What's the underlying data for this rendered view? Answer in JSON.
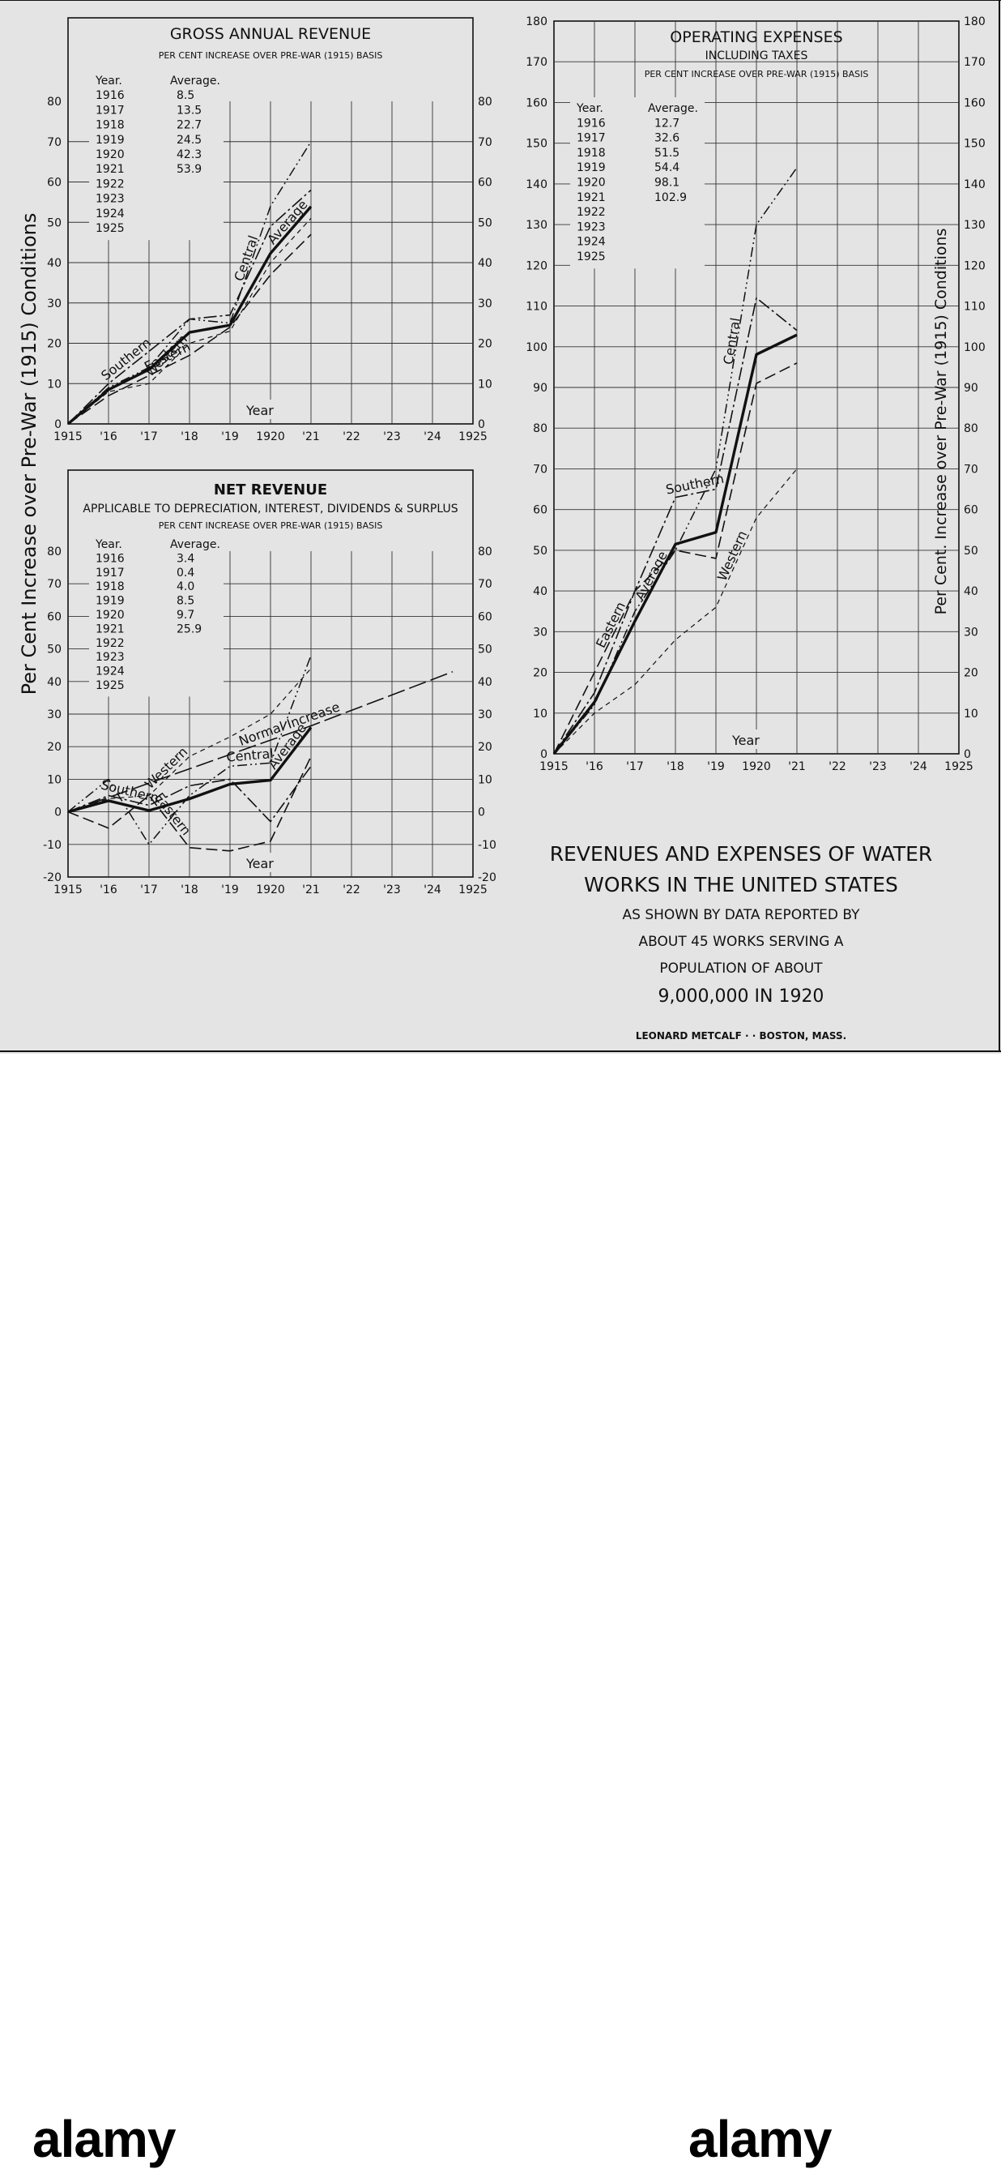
{
  "figure": {
    "left_axis_label": "Per Cent Increase over Pre-War (1915) Conditions",
    "right_axis_label": "Per Cent. Increase over Pre-War (1915) Conditions",
    "caption_lines": [
      "REVENUES AND EXPENSES OF WATER",
      "WORKS IN THE UNITED STATES",
      "AS SHOWN BY DATA REPORTED BY",
      "ABOUT 45 WORKS SERVING A",
      "POPULATION OF ABOUT",
      "9,000,000 IN 1920"
    ],
    "credit": "LEONARD METCALF · · BOSTON, MASS."
  },
  "watermark": {
    "left": "alamy",
    "right": "alamy"
  },
  "chart_data": [
    {
      "type": "line",
      "title": "GROSS ANNUAL REVENUE",
      "subtitle": "PER CENT INCREASE OVER PRE-WAR (1915) BASIS",
      "xlabel": "Year",
      "x": [
        1915,
        1916,
        1917,
        1918,
        1919,
        1920,
        1921
      ],
      "x_ticks": [
        "1915",
        "'16",
        "'17",
        "'18",
        "'19",
        "1920",
        "'21",
        "'22",
        "'23",
        "'24",
        "1925"
      ],
      "xlim": [
        1915,
        1925
      ],
      "ylim": [
        0,
        80
      ],
      "y_ticks": [
        0,
        10,
        20,
        30,
        40,
        50,
        60,
        70,
        80
      ],
      "grid": true,
      "table": {
        "headers": [
          "Year.",
          "Average."
        ],
        "rows": [
          [
            "1916",
            "8.5"
          ],
          [
            "1917",
            "13.5"
          ],
          [
            "1918",
            "22.7"
          ],
          [
            "1919",
            "24.5"
          ],
          [
            "1920",
            "42.3"
          ],
          [
            "1921",
            "53.9"
          ],
          [
            "1922",
            ""
          ],
          [
            "1923",
            ""
          ],
          [
            "1924",
            ""
          ],
          [
            "1925",
            ""
          ]
        ]
      },
      "series": [
        {
          "name": "Average",
          "values": [
            0,
            8.5,
            13.5,
            22.7,
            24.5,
            42.3,
            53.9
          ],
          "color": "#111111"
        },
        {
          "name": "Central",
          "values": [
            0,
            9,
            14,
            26,
            25,
            54,
            70
          ],
          "color": "#111111"
        },
        {
          "name": "Eastern",
          "values": [
            0,
            7,
            12,
            17,
            24,
            37,
            47
          ],
          "color": "#111111"
        },
        {
          "name": "Southern",
          "values": [
            0,
            10,
            18,
            26,
            27,
            49,
            58
          ],
          "color": "#111111"
        },
        {
          "name": "Western",
          "values": [
            0,
            8,
            10,
            20,
            23,
            40,
            51
          ],
          "color": "#111111"
        }
      ]
    },
    {
      "type": "line",
      "title": "NET REVENUE",
      "subtitle": "APPLICABLE TO DEPRECIATION, INTEREST, DIVIDENDS & SURPLUS",
      "subtitle2": "PER CENT INCREASE OVER PRE-WAR (1915) BASIS",
      "xlabel": "Year",
      "x": [
        1915,
        1916,
        1917,
        1918,
        1919,
        1920,
        1921
      ],
      "x_ticks": [
        "1915",
        "'16",
        "'17",
        "'18",
        "'19",
        "1920",
        "'21",
        "'22",
        "'23",
        "'24",
        "1925"
      ],
      "xlim": [
        1915,
        1925
      ],
      "ylim": [
        -20,
        80
      ],
      "y_ticks": [
        -20,
        -10,
        0,
        10,
        20,
        30,
        40,
        50,
        60,
        70,
        80
      ],
      "grid": true,
      "table": {
        "headers": [
          "Year.",
          "Average."
        ],
        "rows": [
          [
            "1916",
            "3.4"
          ],
          [
            "1917",
            "0.4"
          ],
          [
            "1918",
            "4.0"
          ],
          [
            "1919",
            "8.5"
          ],
          [
            "1920",
            "9.7"
          ],
          [
            "1921",
            "25.9"
          ],
          [
            "1922",
            ""
          ],
          [
            "1923",
            ""
          ],
          [
            "1924",
            ""
          ],
          [
            "1925",
            ""
          ]
        ]
      },
      "series": [
        {
          "name": "Average",
          "values": [
            0,
            3.4,
            0.4,
            4.0,
            8.5,
            9.7,
            25.9
          ],
          "color": "#111111"
        },
        {
          "name": "Central",
          "values": [
            0,
            10,
            -10,
            5,
            14,
            15,
            48
          ],
          "color": "#111111"
        },
        {
          "name": "Eastern",
          "values": [
            0,
            -5,
            5,
            -11,
            -12,
            -9,
            17
          ],
          "color": "#111111"
        },
        {
          "name": "Southern",
          "values": [
            0,
            5,
            2,
            8,
            10,
            -3,
            14
          ],
          "color": "#111111"
        },
        {
          "name": "Western",
          "values": [
            0,
            4,
            5,
            17,
            23,
            30,
            44
          ],
          "color": "#111111"
        },
        {
          "name": "Normal Increase",
          "values": [
            0,
            4.4,
            8.8,
            13.2,
            17.6,
            22,
            26.4
          ],
          "x": [
            1915,
            1916,
            1917,
            1918,
            1919,
            1920,
            1921
          ],
          "extend_to": [
            1924.5,
            43
          ],
          "color": "#111111"
        }
      ]
    },
    {
      "type": "line",
      "title": "OPERATING EXPENSES",
      "subtitle": "INCLUDING TAXES",
      "subtitle2": "PER CENT INCREASE OVER PRE-WAR (1915) BASIS",
      "xlabel": "Year",
      "x": [
        1915,
        1916,
        1917,
        1918,
        1919,
        1920,
        1921
      ],
      "x_ticks": [
        "1915",
        "'16",
        "'17",
        "'18",
        "'19",
        "1920",
        "'21",
        "'22",
        "'23",
        "'24",
        "1925"
      ],
      "xlim": [
        1915,
        1925
      ],
      "ylim": [
        0,
        180
      ],
      "y_ticks": [
        0,
        10,
        20,
        30,
        40,
        50,
        60,
        70,
        80,
        90,
        100,
        110,
        120,
        130,
        140,
        150,
        160,
        170,
        180
      ],
      "grid": true,
      "table": {
        "headers": [
          "Year.",
          "Average."
        ],
        "rows": [
          [
            "1916",
            "12.7"
          ],
          [
            "1917",
            "32.6"
          ],
          [
            "1918",
            "51.5"
          ],
          [
            "1919",
            "54.4"
          ],
          [
            "1920",
            "98.1"
          ],
          [
            "1921",
            "102.9"
          ],
          [
            "1922",
            ""
          ],
          [
            "1923",
            ""
          ],
          [
            "1924",
            ""
          ],
          [
            "1925",
            ""
          ]
        ]
      },
      "series": [
        {
          "name": "Average",
          "values": [
            0,
            12.7,
            32.6,
            51.5,
            54.4,
            98.1,
            102.9
          ],
          "color": "#111111"
        },
        {
          "name": "Central",
          "values": [
            0,
            12,
            35,
            50,
            70,
            130,
            144
          ],
          "color": "#111111"
        },
        {
          "name": "Eastern",
          "values": [
            0,
            20,
            40,
            50,
            48,
            91,
            96
          ],
          "color": "#111111"
        },
        {
          "name": "Southern",
          "values": [
            0,
            15,
            40,
            63,
            65,
            112,
            104
          ],
          "color": "#111111"
        },
        {
          "name": "Western",
          "values": [
            0,
            10,
            17,
            28,
            36,
            58,
            70
          ],
          "color": "#111111"
        }
      ]
    }
  ]
}
